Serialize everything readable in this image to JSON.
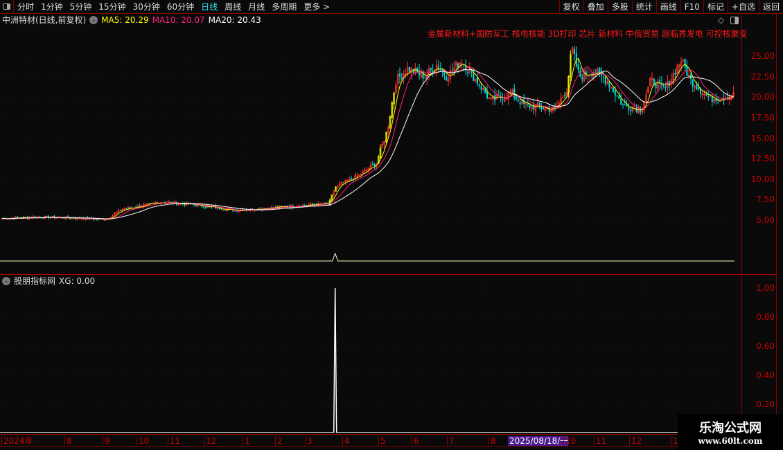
{
  "toolbar": {
    "periods": [
      "分时",
      "1分钟",
      "5分钟",
      "15分钟",
      "30分钟",
      "60分钟",
      "日线",
      "周线",
      "月线",
      "多周期",
      "更多 >"
    ],
    "active": "日线",
    "right_buttons": [
      "复权",
      "叠加",
      "多股",
      "统计",
      "画线",
      "F10",
      "标记",
      "+自选",
      "返回"
    ]
  },
  "info": {
    "title": "中洲特材(日线,前复权)",
    "ma5": "MA5: 20.29",
    "ma10": "MA10: 20.07",
    "ma20": "MA20: 20.43"
  },
  "concepts": "金属新材料+国防军工 核电核能 3D打印 芯片 新材料 中俄贸易 超临界发电 可控核聚变",
  "sub_info": {
    "name": "股朋指标网",
    "xg": "XG: 0.00"
  },
  "colors": {
    "up": "#ff3232",
    "down": "#00e0e0",
    "ma5": "#ffff00",
    "ma10": "#ff2080",
    "ma20": "#ffffff",
    "axis": "#cc0000"
  },
  "watermark": {
    "name": "乐淘公式网",
    "url": "www.60lt.com"
  },
  "time_axis": [
    "2024年",
    "8",
    "9",
    "10",
    "11",
    "12",
    "1",
    "2",
    "3",
    "4",
    "5",
    "6",
    "7",
    "8",
    "2025/08/18/一",
    "10",
    "11",
    "12",
    "1"
  ],
  "chart_data": [
    {
      "type": "candlestick",
      "yticks": [
        "25.00",
        "22.50",
        "20.00",
        "17.50",
        "15.00",
        "12.50",
        "10.00",
        "7.50",
        "5.00"
      ],
      "ylim": [
        3.2,
        29
      ],
      "close_points": [
        [
          "2024-07-01",
          5.2
        ],
        [
          "2024-08-01",
          5.4
        ],
        [
          "2024-09-25",
          5.1
        ],
        [
          "2024-10-08",
          6.3
        ],
        [
          "2024-11-10",
          7.2
        ],
        [
          "2024-12-05",
          6.9
        ],
        [
          "2025-01-10",
          6.2
        ],
        [
          "2025-02-25",
          6.7
        ],
        [
          "2025-03-28",
          7.0
        ],
        [
          "2025-04-02",
          9.0
        ],
        [
          "2025-04-22",
          10.5
        ],
        [
          "2025-05-06",
          12.0
        ],
        [
          "2025-05-15",
          16
        ],
        [
          "2025-05-22",
          22
        ],
        [
          "2025-06-01",
          23.5
        ],
        [
          "2025-06-15",
          22.5
        ],
        [
          "2025-06-25",
          24
        ],
        [
          "2025-07-03",
          22.5
        ],
        [
          "2025-07-15",
          24.5
        ],
        [
          "2025-07-30",
          21.5
        ],
        [
          "2025-08-08",
          19.5
        ],
        [
          "2025-08-25",
          20.5
        ],
        [
          "2025-09-05",
          19
        ],
        [
          "2025-09-30",
          18.5
        ],
        [
          "2025-10-10",
          21
        ],
        [
          "2025-10-14",
          26
        ],
        [
          "2025-10-20",
          22.5
        ],
        [
          "2025-11-01",
          23.2
        ],
        [
          "2025-11-12",
          22
        ],
        [
          "2025-11-25",
          19
        ],
        [
          "2025-12-10",
          18.5
        ],
        [
          "2025-12-18",
          22
        ],
        [
          "2025-12-30",
          21
        ],
        [
          "2026-01-12",
          24.5
        ],
        [
          "2026-01-20",
          22
        ],
        [
          "2026-02-05",
          19.8
        ],
        [
          "2026-02-25",
          20.3
        ]
      ],
      "series": [
        {
          "name": "MA5"
        },
        {
          "name": "MA10"
        },
        {
          "name": "MA20"
        }
      ]
    },
    {
      "type": "line",
      "yticks": [
        "1.00",
        "0.80",
        "0.60",
        "0.40",
        "0.20"
      ],
      "ylim": [
        0,
        1
      ],
      "series": [
        {
          "name": "XG",
          "spikes": [
            [
              "2025-04-02",
              1.0
            ]
          ]
        }
      ]
    }
  ]
}
